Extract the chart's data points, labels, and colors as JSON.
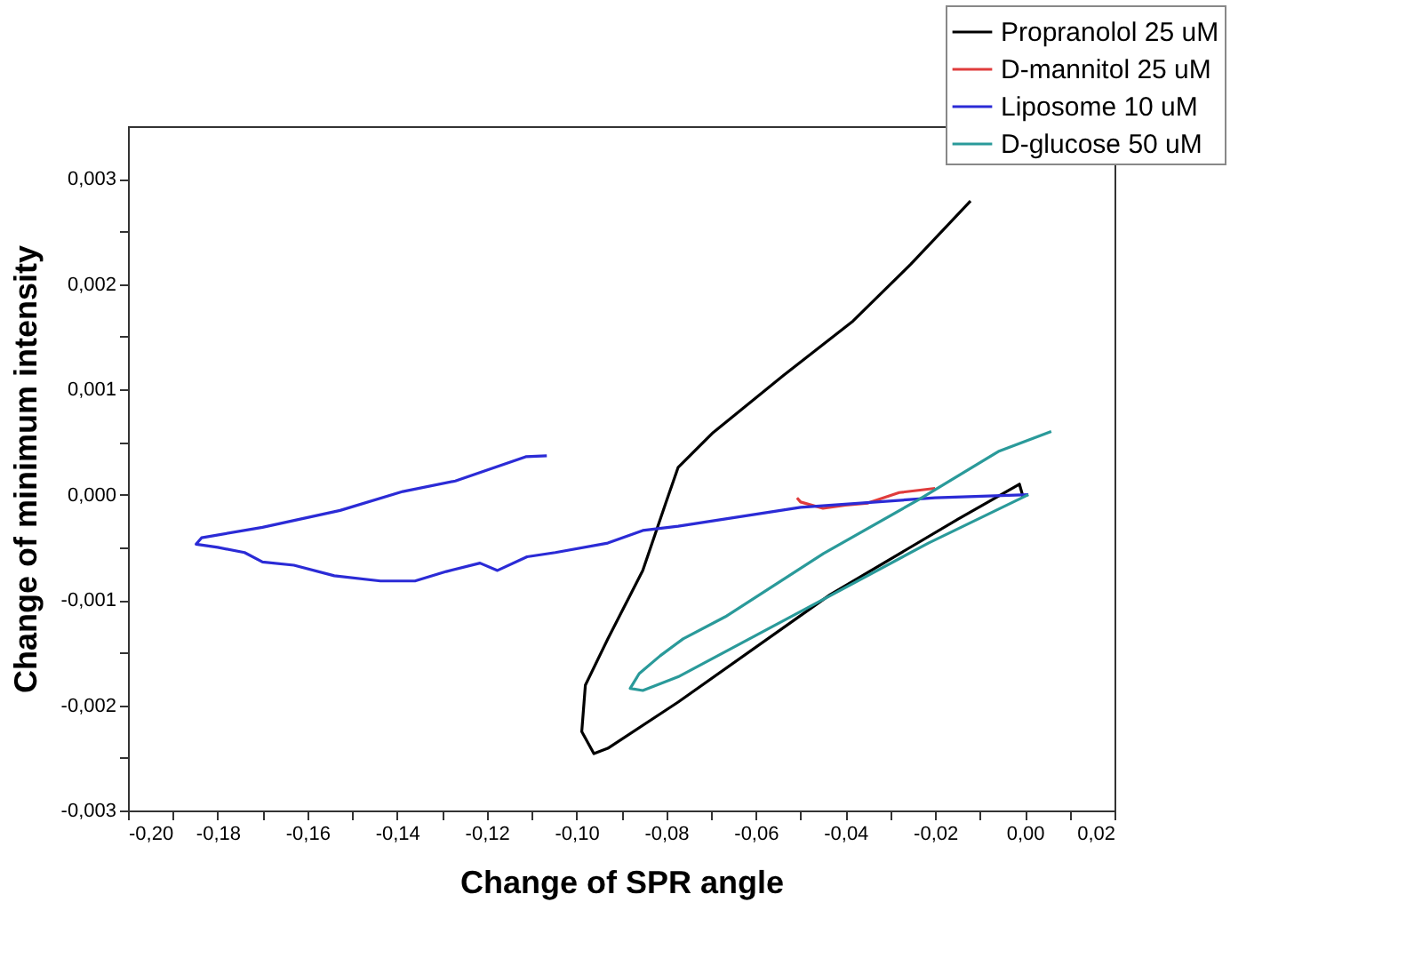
{
  "chart_data": {
    "type": "line",
    "xlabel": "Change of SPR angle",
    "ylabel": "Change of minimum intensity",
    "xlim": [
      -0.2,
      0.02
    ],
    "ylim": [
      -0.003,
      0.0035
    ],
    "xticks": [
      {
        "value": -0.2,
        "label": "-0,20"
      },
      {
        "value": -0.19,
        "label": null
      },
      {
        "value": -0.18,
        "label": "-0,18"
      },
      {
        "value": -0.17,
        "label": null
      },
      {
        "value": -0.16,
        "label": "-0,16"
      },
      {
        "value": -0.15,
        "label": null
      },
      {
        "value": -0.14,
        "label": "-0,14"
      },
      {
        "value": -0.13,
        "label": null
      },
      {
        "value": -0.12,
        "label": "-0,12"
      },
      {
        "value": -0.11,
        "label": null
      },
      {
        "value": -0.1,
        "label": "-0,10"
      },
      {
        "value": -0.09,
        "label": null
      },
      {
        "value": -0.08,
        "label": "-0,08"
      },
      {
        "value": -0.07,
        "label": null
      },
      {
        "value": -0.06,
        "label": "-0,06"
      },
      {
        "value": -0.05,
        "label": null
      },
      {
        "value": -0.04,
        "label": "-0,04"
      },
      {
        "value": -0.03,
        "label": null
      },
      {
        "value": -0.02,
        "label": "-0,02"
      },
      {
        "value": -0.01,
        "label": null
      },
      {
        "value": 0,
        "label": "0,00"
      },
      {
        "value": 0.01,
        "label": null
      },
      {
        "value": 0.02,
        "label": "0,02"
      }
    ],
    "yticks": [
      {
        "value": -0.003,
        "label": "-0,003"
      },
      {
        "value": -0.0025,
        "label": null
      },
      {
        "value": -0.002,
        "label": "-0,002"
      },
      {
        "value": -0.0015,
        "label": null
      },
      {
        "value": -0.001,
        "label": "-0,001"
      },
      {
        "value": -0.0005,
        "label": null
      },
      {
        "value": 0,
        "label": "0,000"
      },
      {
        "value": 0.0005,
        "label": null
      },
      {
        "value": 0.001,
        "label": "0,001"
      },
      {
        "value": 0.0015,
        "label": null
      },
      {
        "value": 0.002,
        "label": "0,002"
      },
      {
        "value": 0.0025,
        "label": null
      },
      {
        "value": 0.003,
        "label": "0,003"
      }
    ],
    "grid": false,
    "legend": "top right",
    "marker": "none",
    "line_style": "solid",
    "series": [
      {
        "name": "Propranolol 25 uM",
        "color": "#000000",
        "x": [
          -0.0121,
          -0.0254,
          -0.0383,
          -0.0539,
          -0.0695,
          -0.0773,
          -0.08,
          -0.0852,
          -0.093,
          -0.098,
          -0.0988,
          -0.0961,
          -0.093,
          -0.0773,
          -0.0434,
          -0.0148,
          -0.0012,
          -0.0004
        ],
        "values": [
          0.00279,
          0.00219,
          0.00165,
          0.00113,
          0.00059,
          0.00026,
          -7e-05,
          -0.00072,
          -0.00137,
          -0.00181,
          -0.00225,
          -0.00246,
          -0.00241,
          -0.00197,
          -0.00095,
          -0.00023,
          0.0001,
          -2e-05
        ]
      },
      {
        "name": "D-mannitol 25 uM",
        "color": "#e03c3c",
        "x": [
          -0.0508,
          -0.05,
          -0.045,
          -0.04,
          -0.035,
          -0.028,
          -0.02
        ],
        "values": [
          -3e-05,
          -7e-05,
          -0.00013,
          -0.0001,
          -8e-05,
          2e-05,
          6e-05
        ]
      },
      {
        "name": "Liposome 10 uM",
        "color": "#2b2bd6",
        "x": [
          0.0008,
          -0.02,
          -0.05,
          -0.0773,
          -0.0852,
          -0.093,
          -0.1047,
          -0.111,
          -0.1176,
          -0.1215,
          -0.129,
          -0.136,
          -0.1437,
          -0.154,
          -0.163,
          -0.17,
          -0.174,
          -0.18,
          -0.1848,
          -0.1836,
          -0.17,
          -0.1527,
          -0.1387,
          -0.127,
          -0.1113,
          -0.1066
        ],
        "values": [
          0.0,
          -3e-05,
          -0.00012,
          -0.0003,
          -0.00034,
          -0.00046,
          -0.00055,
          -0.00059,
          -0.00072,
          -0.00065,
          -0.00073,
          -0.00082,
          -0.00082,
          -0.00077,
          -0.00067,
          -0.00064,
          -0.00055,
          -0.0005,
          -0.00047,
          -0.00041,
          -0.00031,
          -0.00015,
          3e-05,
          0.00013,
          0.00036,
          0.00037
        ]
      },
      {
        "name": "D-glucose 50 uM",
        "color": "#2a9a9a",
        "x": [
          0.0059,
          -0.0059,
          -0.0238,
          -0.0449,
          -0.0668,
          -0.0762,
          -0.0813,
          -0.086,
          -0.088,
          -0.0852,
          -0.0773,
          -0.05,
          -0.0215,
          0.0008
        ],
        "values": [
          0.0006,
          0.00041,
          -5e-05,
          -0.00056,
          -0.00116,
          -0.00137,
          -0.00153,
          -0.0017,
          -0.00184,
          -0.00186,
          -0.00173,
          -0.00111,
          -0.00046,
          0.0
        ]
      }
    ]
  }
}
